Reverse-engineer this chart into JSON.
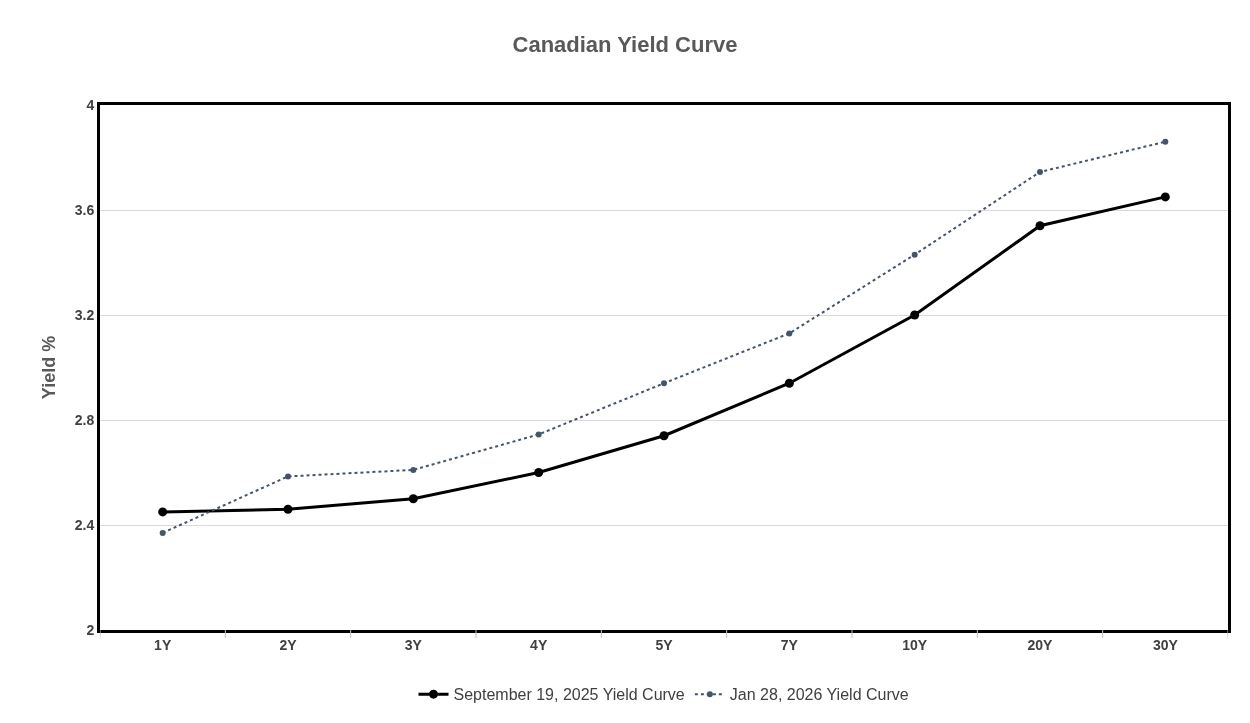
{
  "chart_data": {
    "type": "line",
    "title": "Canadian Yield Curve",
    "ylabel": "Yield %",
    "categories": [
      "1Y",
      "2Y",
      "3Y",
      "4Y",
      "5Y",
      "7Y",
      "10Y",
      "20Y",
      "30Y"
    ],
    "series": [
      {
        "name": "September 19, 2025 Yield Curve",
        "color": "#000000",
        "line_style": "solid",
        "values": [
          2.45,
          2.46,
          2.5,
          2.6,
          2.74,
          2.94,
          3.2,
          3.54,
          3.65
        ]
      },
      {
        "name": "Jan 28, 2026 Yield Curve",
        "color": "#44546a",
        "line_style": "dotted",
        "values": [
          2.37,
          2.585,
          2.61,
          2.745,
          2.94,
          3.13,
          3.43,
          3.745,
          3.86
        ]
      }
    ],
    "ylim": [
      2,
      4
    ],
    "yticks": [
      2,
      2.4,
      2.8,
      3.2,
      3.6,
      4
    ],
    "grid": "y",
    "legend": "bottom",
    "marker": "circle"
  }
}
